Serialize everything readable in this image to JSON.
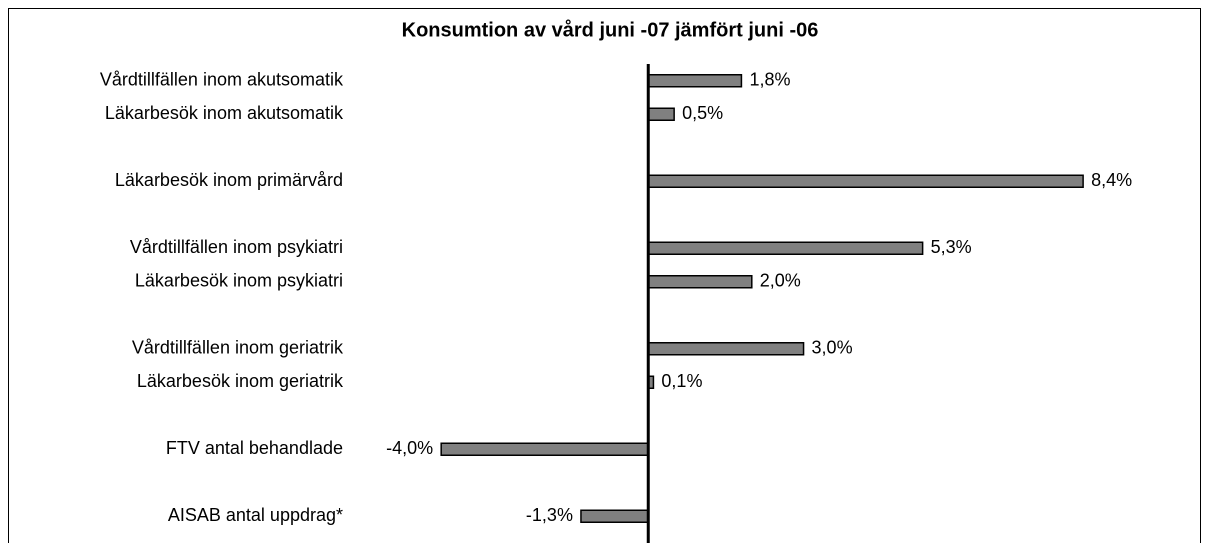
{
  "chart_data": {
    "type": "barh",
    "title": "Konsumtion av vård juni -07 jämfört juni -06",
    "categories": [
      "Vårdtillfällen inom akutsomatik",
      "Läkarbesök  inom akutsomatik",
      null,
      "Läkarbesök inom primärvård",
      null,
      "Vårdtillfällen inom psykiatri",
      "Läkarbesök inom psykiatri",
      null,
      "Vårdtillfällen inom geriatrik",
      "Läkarbesök inom geriatrik",
      null,
      "FTV antal behandlade",
      null,
      "AISAB antal uppdrag*"
    ],
    "values": [
      1.8,
      0.5,
      null,
      8.4,
      null,
      5.3,
      2.0,
      null,
      3.0,
      0.1,
      null,
      -4.0,
      null,
      -1.3
    ],
    "value_labels": [
      "1,8%",
      "0,5%",
      null,
      "8,4%",
      null,
      "5,3%",
      "2,0%",
      null,
      "3,0%",
      "0,1%",
      null,
      "-4,0%",
      null,
      "-1,3%"
    ],
    "color": "#808080",
    "xlim": [
      -5.8,
      10.6
    ]
  }
}
